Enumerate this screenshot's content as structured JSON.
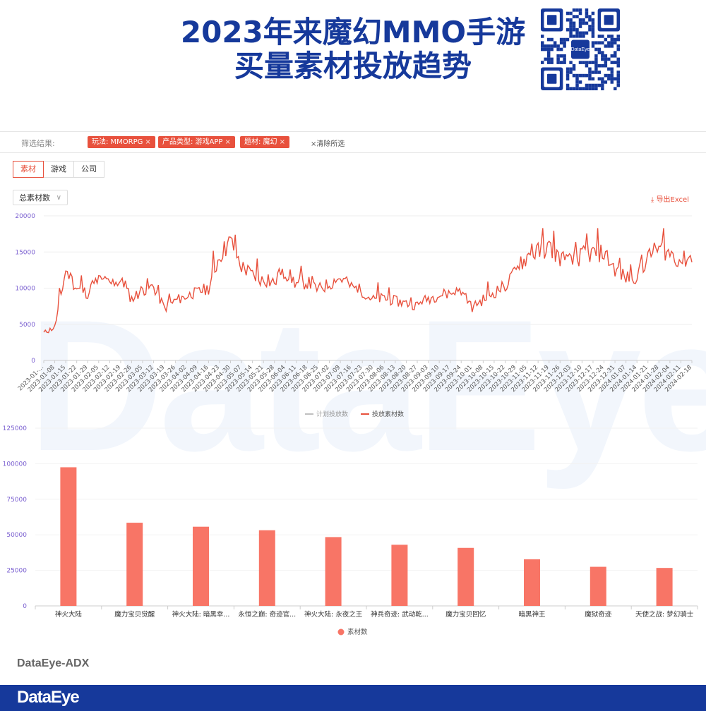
{
  "header": {
    "title_line1": "2023年来魔幻MMO手游",
    "title_line2": "买量素材投放趋势"
  },
  "qr": {
    "label": "DataEye"
  },
  "filters": {
    "label": "筛选结果:",
    "chips": [
      "玩法: MMORPG",
      "产品类型: 游戏APP",
      "题材: 魔幻"
    ],
    "clear_label": "清除所选"
  },
  "tabs": [
    "素材",
    "游戏",
    "公司"
  ],
  "metric_select": {
    "value": "总素材数"
  },
  "export_label": "导出Excel",
  "colors": {
    "accent": "#e8513d",
    "brand": "#16399b",
    "bar": "#f87566",
    "gray_legend": "#c0c0c0"
  },
  "watermark": "DataEye",
  "footer": {
    "brand": "DataEye-ADX",
    "logo": "DataEye"
  },
  "chart_data": [
    {
      "type": "line",
      "x_ticks": [
        "2023-01-…",
        "2023-01-08",
        "2023-01-15",
        "2023-01-22",
        "2023-01-29",
        "2023-02-05",
        "2023-02-12",
        "2023-02-19",
        "2023-02-26",
        "2023-03-05",
        "2023-03-12",
        "2023-03-19",
        "2023-03-26",
        "2023-04-02",
        "2023-04-09",
        "2023-04-16",
        "2023-04-23",
        "2023-04-30",
        "2023-05-07",
        "2023-05-14",
        "2023-05-21",
        "2023-05-28",
        "2023-06-04",
        "2023-06-11",
        "2023-06-18",
        "2023-06-25",
        "2023-07-02",
        "2023-07-09",
        "2023-07-16",
        "2023-07-23",
        "2023-07-30",
        "2023-08-06",
        "2023-08-13",
        "2023-08-20",
        "2023-08-27",
        "2023-09-03",
        "2023-09-10",
        "2023-09-17",
        "2023-09-24",
        "2023-10-01",
        "2023-10-08",
        "2023-10-15",
        "2023-10-22",
        "2023-10-29",
        "2023-11-05",
        "2023-11-12",
        "2023-11-19",
        "2023-11-26",
        "2023-12-03",
        "2023-12-10",
        "2023-12-17",
        "2023-12-24",
        "2023-12-31",
        "2024-01-07",
        "2024-01-14",
        "2024-01-21",
        "2024-01-28",
        "2024-02-04",
        "2024-02-11",
        "2024-02-18"
      ],
      "y_ticks": [
        0,
        5000,
        10000,
        15000,
        20000
      ],
      "ylim": [
        0,
        20000
      ],
      "legend": [
        "计划投放数",
        "投放素材数"
      ],
      "series": [
        {
          "name": "计划投放数",
          "values": []
        },
        {
          "name": "投放素材数",
          "weekly_values": [
            3800,
            4600,
            12500,
            10000,
            9300,
            11200,
            10600,
            11000,
            8500,
            9800,
            10200,
            7200,
            8300,
            8900,
            9400,
            10000,
            14500,
            16500,
            13000,
            11800,
            11000,
            10800,
            12200,
            10600,
            10800,
            9800,
            10600,
            11400,
            10200,
            9600,
            8400,
            8600,
            8200,
            7900,
            7600,
            8600,
            9000,
            9300,
            9600,
            7300,
            8400,
            9400,
            10300,
            12300,
            14400,
            15000,
            15600,
            14200,
            13600,
            14500,
            14800,
            14900,
            12600,
            11400,
            11700,
            14200,
            15600,
            14800,
            13800,
            14300
          ]
        }
      ]
    },
    {
      "type": "bar",
      "categories": [
        "神火大陆",
        "魔力宝贝觉醒",
        "神火大陆: 暗黑幸...",
        "永恒之巅: 奇迹官...",
        "神火大陆: 永夜之王",
        "神兵奇迹: 武动乾...",
        "魔力宝贝回忆",
        "暗黑神王",
        "魔狱奇迹",
        "天使之战: 梦幻骑士"
      ],
      "values": [
        97500,
        58500,
        55700,
        53200,
        48400,
        43000,
        40800,
        32800,
        27500,
        26700
      ],
      "y_ticks": [
        0,
        25000,
        50000,
        75000,
        100000,
        125000
      ],
      "ylim": [
        0,
        125000
      ],
      "legend": [
        "素材数"
      ]
    }
  ]
}
